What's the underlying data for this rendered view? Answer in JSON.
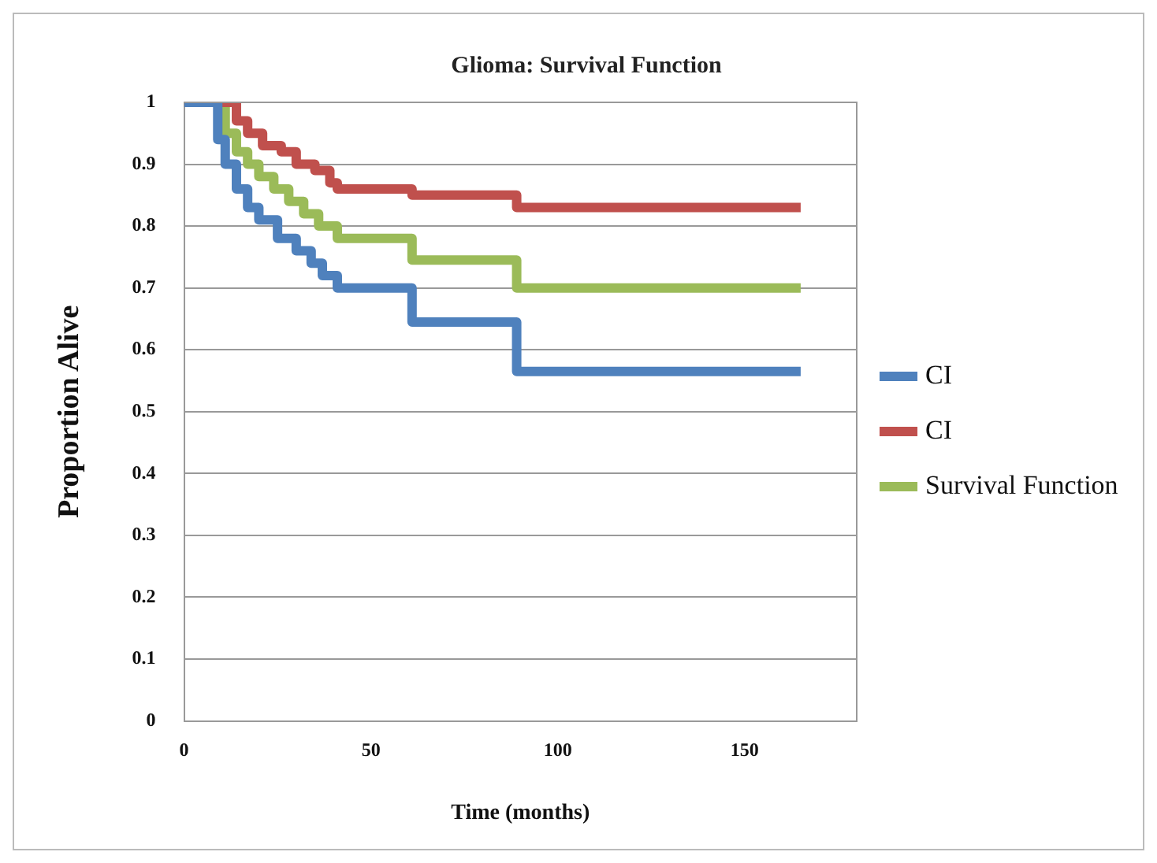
{
  "chart_data": {
    "type": "step",
    "title": "Glioma: Survival Function",
    "xlabel": "Time (months)",
    "ylabel": "Proportion Alive",
    "xlim": [
      0,
      180
    ],
    "xticks": [
      0,
      50,
      100,
      150
    ],
    "ylim": [
      0,
      1
    ],
    "yticks": [
      0,
      0.1,
      0.2,
      0.3,
      0.4,
      0.5,
      0.6,
      0.7,
      0.8,
      0.9,
      1
    ],
    "grid": "y",
    "legend": "right",
    "marker": "none",
    "line_style": "solid",
    "series": [
      {
        "name": "CI",
        "color": "#4f81bd",
        "x": [
          0,
          7,
          9,
          11,
          14,
          17,
          20,
          25,
          30,
          34,
          37,
          41,
          61,
          89,
          165
        ],
        "values": [
          1,
          1,
          0.94,
          0.9,
          0.86,
          0.83,
          0.81,
          0.78,
          0.76,
          0.74,
          0.72,
          0.7,
          0.645,
          0.565,
          0.565
        ]
      },
      {
        "name": "CI",
        "color": "#c0504d",
        "x": [
          0,
          12,
          14,
          17,
          21,
          26,
          30,
          35,
          39,
          41,
          61,
          89,
          165
        ],
        "values": [
          1,
          1,
          0.97,
          0.95,
          0.93,
          0.92,
          0.9,
          0.89,
          0.87,
          0.86,
          0.85,
          0.83,
          0.83
        ]
      },
      {
        "name": "Survival Function",
        "color": "#9bbb59",
        "x": [
          0,
          9,
          11,
          14,
          17,
          20,
          24,
          28,
          32,
          36,
          41,
          61,
          89,
          165
        ],
        "values": [
          1,
          1,
          0.95,
          0.92,
          0.9,
          0.88,
          0.86,
          0.84,
          0.82,
          0.8,
          0.78,
          0.745,
          0.7,
          0.7
        ]
      }
    ]
  }
}
